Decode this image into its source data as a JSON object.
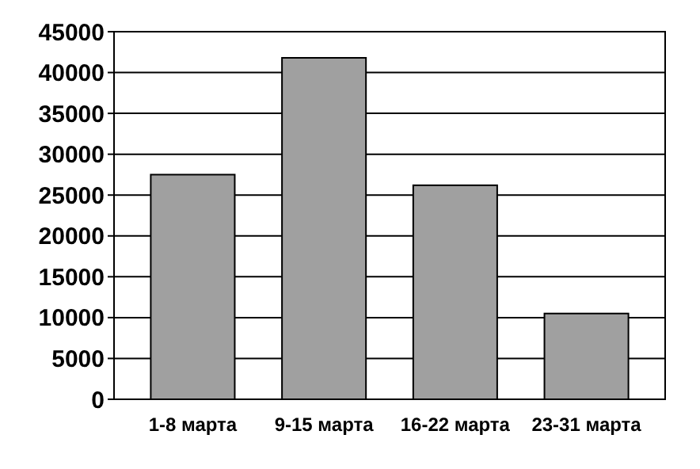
{
  "chart_data": {
    "type": "bar",
    "categories": [
      "1-8 марта",
      "9-15 марта",
      "16-22 марта",
      "23-31 марта"
    ],
    "values": [
      27500,
      41800,
      26200,
      10500
    ],
    "color": "#a0a0a0",
    "ylim": [
      0,
      45000
    ],
    "yticks": [
      0,
      5000,
      10000,
      15000,
      20000,
      25000,
      30000,
      35000,
      40000,
      45000
    ],
    "grid": "y"
  }
}
